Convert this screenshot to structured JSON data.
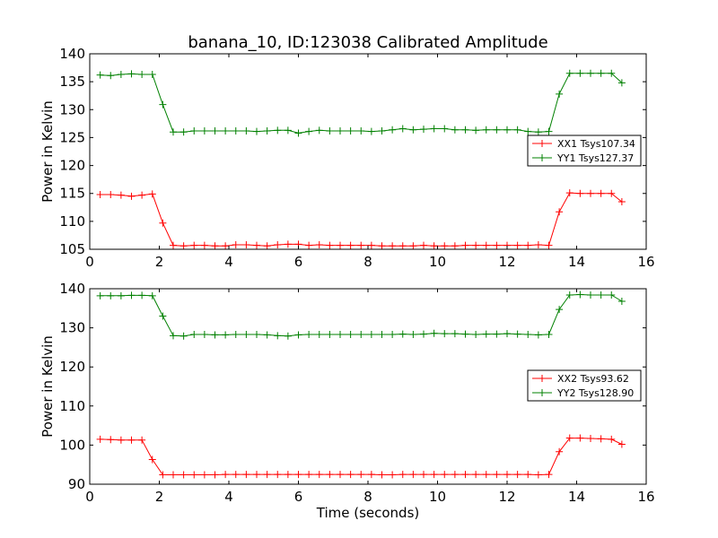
{
  "title": "banana_10, ID:123038 Calibrated Amplitude",
  "colors": {
    "xx": "#ff0000",
    "yy": "#008000"
  },
  "chart_data": [
    {
      "type": "line",
      "xlabel": "",
      "ylabel": "Power in Kelvin",
      "xlim": [
        0,
        16
      ],
      "ylim": [
        105,
        140
      ],
      "xticks": [
        "0",
        "2",
        "4",
        "6",
        "8",
        "10",
        "12",
        "14",
        "16"
      ],
      "yticks": [
        "105",
        "110",
        "115",
        "120",
        "125",
        "130",
        "135",
        "140"
      ],
      "legend": "center-right",
      "x": [
        0.3,
        0.6,
        0.9,
        1.2,
        1.5,
        1.8,
        2.1,
        2.4,
        2.7,
        3.0,
        3.3,
        3.6,
        3.9,
        4.2,
        4.5,
        4.8,
        5.1,
        5.4,
        5.7,
        6.0,
        6.3,
        6.6,
        6.9,
        7.2,
        7.5,
        7.8,
        8.1,
        8.4,
        8.7,
        9.0,
        9.3,
        9.6,
        9.9,
        10.2,
        10.5,
        10.8,
        11.1,
        11.4,
        11.7,
        12.0,
        12.3,
        12.6,
        12.9,
        13.2,
        13.5,
        13.8,
        14.1,
        14.4,
        14.7,
        15.0,
        15.3
      ],
      "series": [
        {
          "name": "XX1 Tsys107.34",
          "color": "#ff0000",
          "values": [
            114.8,
            114.8,
            114.7,
            114.5,
            114.7,
            114.9,
            109.7,
            105.7,
            105.6,
            105.7,
            105.7,
            105.6,
            105.6,
            105.8,
            105.8,
            105.7,
            105.6,
            105.8,
            105.9,
            105.9,
            105.7,
            105.8,
            105.7,
            105.7,
            105.7,
            105.7,
            105.7,
            105.6,
            105.6,
            105.6,
            105.6,
            105.7,
            105.6,
            105.6,
            105.6,
            105.7,
            105.7,
            105.7,
            105.7,
            105.7,
            105.7,
            105.7,
            105.8,
            105.7,
            111.7,
            115.1,
            115.0,
            115.0,
            115.0,
            115.0,
            113.5
          ]
        },
        {
          "name": "YY1 Tsys127.37",
          "color": "#008000",
          "values": [
            136.2,
            136.1,
            136.3,
            136.4,
            136.3,
            136.3,
            130.9,
            126.0,
            126.0,
            126.2,
            126.2,
            126.2,
            126.2,
            126.2,
            126.2,
            126.1,
            126.2,
            126.3,
            126.3,
            125.8,
            126.1,
            126.3,
            126.2,
            126.2,
            126.2,
            126.2,
            126.1,
            126.2,
            126.4,
            126.6,
            126.4,
            126.5,
            126.6,
            126.6,
            126.4,
            126.4,
            126.3,
            126.4,
            126.4,
            126.4,
            126.4,
            126.1,
            126.0,
            126.1,
            132.8,
            136.5,
            136.5,
            136.5,
            136.5,
            136.5,
            134.8
          ]
        }
      ]
    },
    {
      "type": "line",
      "xlabel": "Time (seconds)",
      "ylabel": "Power in Kelvin",
      "xlim": [
        0,
        16
      ],
      "ylim": [
        90,
        140
      ],
      "xticks": [
        "0",
        "2",
        "4",
        "6",
        "8",
        "10",
        "12",
        "14",
        "16"
      ],
      "yticks": [
        "90",
        "100",
        "110",
        "120",
        "130",
        "140"
      ],
      "legend": "center-right",
      "x": [
        0.3,
        0.6,
        0.9,
        1.2,
        1.5,
        1.8,
        2.1,
        2.4,
        2.7,
        3.0,
        3.3,
        3.6,
        3.9,
        4.2,
        4.5,
        4.8,
        5.1,
        5.4,
        5.7,
        6.0,
        6.3,
        6.6,
        6.9,
        7.2,
        7.5,
        7.8,
        8.1,
        8.4,
        8.7,
        9.0,
        9.3,
        9.6,
        9.9,
        10.2,
        10.5,
        10.8,
        11.1,
        11.4,
        11.7,
        12.0,
        12.3,
        12.6,
        12.9,
        13.2,
        13.5,
        13.8,
        14.1,
        14.4,
        14.7,
        15.0,
        15.3
      ],
      "series": [
        {
          "name": "XX2 Tsys93.62",
          "color": "#ff0000",
          "values": [
            101.5,
            101.4,
            101.3,
            101.3,
            101.3,
            96.3,
            92.4,
            92.4,
            92.4,
            92.4,
            92.4,
            92.4,
            92.5,
            92.5,
            92.5,
            92.5,
            92.5,
            92.5,
            92.5,
            92.5,
            92.5,
            92.5,
            92.5,
            92.5,
            92.5,
            92.5,
            92.5,
            92.4,
            92.4,
            92.5,
            92.5,
            92.5,
            92.5,
            92.5,
            92.5,
            92.5,
            92.5,
            92.5,
            92.5,
            92.5,
            92.5,
            92.5,
            92.4,
            92.5,
            98.3,
            101.8,
            101.8,
            101.7,
            101.6,
            101.5,
            100.2
          ]
        },
        {
          "name": "YY2 Tsys128.90",
          "color": "#008000",
          "values": [
            138.2,
            138.2,
            138.2,
            138.3,
            138.3,
            138.2,
            133.0,
            128.0,
            127.9,
            128.3,
            128.3,
            128.2,
            128.2,
            128.3,
            128.3,
            128.3,
            128.2,
            128.0,
            127.9,
            128.2,
            128.3,
            128.3,
            128.3,
            128.3,
            128.3,
            128.3,
            128.3,
            128.3,
            128.3,
            128.4,
            128.3,
            128.4,
            128.6,
            128.5,
            128.5,
            128.4,
            128.3,
            128.4,
            128.4,
            128.5,
            128.4,
            128.3,
            128.2,
            128.3,
            134.7,
            138.4,
            138.5,
            138.4,
            138.4,
            138.4,
            136.8
          ]
        }
      ]
    }
  ]
}
